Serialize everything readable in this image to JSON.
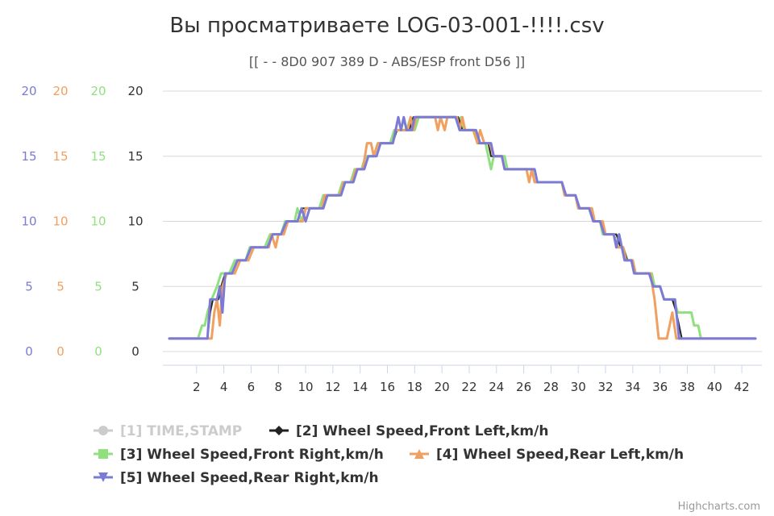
{
  "title": "Вы просматриваете LOG-03-001-!!!!.csv",
  "subtitle": "[[ - - 8D0 907 389 D - ABS/ESP front D56 ]]",
  "credits": "Highcharts.com",
  "chart_data": {
    "type": "line",
    "title": "Вы просматриваете LOG-03-001-!!!!.csv",
    "subtitle": "[[ - - 8D0 907 389 D - ABS/ESP front D56 ]]",
    "xlim": [
      0,
      43
    ],
    "ylim": [
      0,
      20
    ],
    "x_ticks": [
      2,
      4,
      6,
      8,
      10,
      12,
      14,
      16,
      18,
      20,
      22,
      24,
      26,
      28,
      30,
      32,
      34,
      36,
      38,
      40,
      42
    ],
    "y_ticks": [
      0,
      5,
      10,
      15,
      20
    ],
    "grid": "horizontal",
    "legend_position": "bottom-left",
    "y_axes": [
      {
        "color": "#7b7bd6",
        "ticks": [
          "0",
          "5",
          "10",
          "15",
          "20"
        ]
      },
      {
        "color": "#f0a060",
        "ticks": [
          "0",
          "5",
          "10",
          "15",
          "20"
        ]
      },
      {
        "color": "#90e080",
        "ticks": [
          "0",
          "5",
          "10",
          "15",
          "20"
        ]
      },
      {
        "color": "#333333",
        "ticks": [
          "0",
          "5",
          "10",
          "15",
          "20"
        ]
      }
    ],
    "series": [
      {
        "name": "[1] TIME,STAMP",
        "color": "#cccccc",
        "marker": "circle",
        "visible": false,
        "points": []
      },
      {
        "name": "[2] Wheel Speed,Front Left,km/h",
        "color": "#222222",
        "marker": "diamond",
        "visible": true,
        "points": [
          [
            0,
            1
          ],
          [
            2.8,
            1
          ],
          [
            3,
            3
          ],
          [
            3.2,
            4
          ],
          [
            3.6,
            4
          ],
          [
            3.8,
            5
          ],
          [
            4.1,
            6
          ],
          [
            4.6,
            6
          ],
          [
            5,
            7
          ],
          [
            5.6,
            7
          ],
          [
            6,
            8
          ],
          [
            7.2,
            8
          ],
          [
            7.6,
            9
          ],
          [
            8.2,
            9
          ],
          [
            8.6,
            10
          ],
          [
            9.4,
            10
          ],
          [
            9.7,
            11
          ],
          [
            10.2,
            11
          ],
          [
            11.2,
            11
          ],
          [
            11.5,
            12
          ],
          [
            12.6,
            12
          ],
          [
            12.9,
            13
          ],
          [
            13.5,
            13
          ],
          [
            13.8,
            14
          ],
          [
            14.3,
            14
          ],
          [
            14.6,
            15
          ],
          [
            15.2,
            15
          ],
          [
            15.5,
            16
          ],
          [
            16.4,
            16
          ],
          [
            16.7,
            17
          ],
          [
            17.6,
            17
          ],
          [
            17.9,
            18
          ],
          [
            21.2,
            18
          ],
          [
            21.5,
            17
          ],
          [
            22.3,
            17
          ],
          [
            22.6,
            16
          ],
          [
            23.4,
            16
          ],
          [
            23.6,
            15
          ],
          [
            24.4,
            15
          ],
          [
            24.6,
            14
          ],
          [
            26.8,
            14
          ],
          [
            27,
            13
          ],
          [
            28.8,
            13
          ],
          [
            29.1,
            12
          ],
          [
            29.8,
            12
          ],
          [
            30.1,
            11
          ],
          [
            30.8,
            11
          ],
          [
            31.1,
            10
          ],
          [
            31.6,
            10
          ],
          [
            31.9,
            9
          ],
          [
            32.8,
            9
          ],
          [
            33.1,
            8
          ],
          [
            33.3,
            8
          ],
          [
            33.6,
            7
          ],
          [
            33.9,
            7
          ],
          [
            34.1,
            6
          ],
          [
            35.2,
            6
          ],
          [
            35.5,
            5
          ],
          [
            36,
            5
          ],
          [
            36.3,
            4
          ],
          [
            36.9,
            4
          ],
          [
            37.2,
            3
          ],
          [
            37.6,
            1
          ],
          [
            43,
            1
          ]
        ]
      },
      {
        "name": "[3] Wheel Speed,Front Right,km/h",
        "color": "#90e080",
        "marker": "square",
        "visible": true,
        "points": [
          [
            0,
            1
          ],
          [
            2.1,
            1
          ],
          [
            2.4,
            2
          ],
          [
            2.6,
            2
          ],
          [
            2.8,
            3
          ],
          [
            3.1,
            4
          ],
          [
            3.5,
            5
          ],
          [
            3.8,
            6
          ],
          [
            4.4,
            6
          ],
          [
            4.8,
            7
          ],
          [
            5.6,
            7
          ],
          [
            5.9,
            8
          ],
          [
            7,
            8
          ],
          [
            7.4,
            9
          ],
          [
            8.2,
            9
          ],
          [
            8.5,
            10
          ],
          [
            9.2,
            10
          ],
          [
            9.4,
            11
          ],
          [
            9.7,
            10
          ],
          [
            10,
            11
          ],
          [
            11,
            11
          ],
          [
            11.3,
            12
          ],
          [
            12.4,
            12
          ],
          [
            12.7,
            13
          ],
          [
            13.3,
            13
          ],
          [
            13.6,
            14
          ],
          [
            14.1,
            14
          ],
          [
            14.4,
            15
          ],
          [
            15,
            15
          ],
          [
            15.3,
            16
          ],
          [
            16.2,
            16
          ],
          [
            16.5,
            17
          ],
          [
            17.4,
            17
          ],
          [
            17.7,
            18
          ],
          [
            18,
            17
          ],
          [
            18.3,
            18
          ],
          [
            21,
            18
          ],
          [
            21.2,
            17.5
          ],
          [
            21.4,
            18
          ],
          [
            21.6,
            17
          ],
          [
            22.4,
            17
          ],
          [
            22.7,
            16
          ],
          [
            23.2,
            16
          ],
          [
            23.6,
            14
          ],
          [
            23.8,
            15
          ],
          [
            24.6,
            15
          ],
          [
            24.8,
            14
          ],
          [
            26.6,
            14
          ],
          [
            26.8,
            13
          ],
          [
            28.8,
            13
          ],
          [
            29,
            12
          ],
          [
            29.8,
            12
          ],
          [
            30,
            11
          ],
          [
            31,
            11
          ],
          [
            31.2,
            10
          ],
          [
            31.6,
            10
          ],
          [
            31.8,
            9
          ],
          [
            32.6,
            9
          ],
          [
            32.9,
            8
          ],
          [
            33.3,
            8
          ],
          [
            33.6,
            7
          ],
          [
            34,
            7
          ],
          [
            34.2,
            6
          ],
          [
            35.4,
            6
          ],
          [
            35.6,
            5
          ],
          [
            36,
            5
          ],
          [
            36.3,
            4
          ],
          [
            37,
            4
          ],
          [
            37.3,
            3
          ],
          [
            38.3,
            3
          ],
          [
            38.5,
            2
          ],
          [
            38.8,
            2
          ],
          [
            39,
            1
          ],
          [
            43,
            1
          ]
        ]
      },
      {
        "name": "[4] Wheel Speed,Rear Left,km/h",
        "color": "#f0a060",
        "marker": "triangle",
        "visible": true,
        "points": [
          [
            0,
            1
          ],
          [
            2.9,
            1
          ],
          [
            3.1,
            1
          ],
          [
            3.3,
            3
          ],
          [
            3.5,
            4
          ],
          [
            3.7,
            2
          ],
          [
            3.9,
            5
          ],
          [
            4.2,
            6
          ],
          [
            4.8,
            6
          ],
          [
            5.2,
            7
          ],
          [
            5.8,
            7
          ],
          [
            6.2,
            8
          ],
          [
            7.3,
            8
          ],
          [
            7.5,
            9
          ],
          [
            7.8,
            8
          ],
          [
            8,
            9
          ],
          [
            8.4,
            9
          ],
          [
            8.7,
            10
          ],
          [
            9.8,
            10
          ],
          [
            10,
            11
          ],
          [
            11.2,
            11
          ],
          [
            11.4,
            12
          ],
          [
            12.5,
            12
          ],
          [
            12.8,
            13
          ],
          [
            13.4,
            13
          ],
          [
            13.7,
            14
          ],
          [
            14.2,
            14
          ],
          [
            14.5,
            16
          ],
          [
            14.8,
            16
          ],
          [
            15,
            15
          ],
          [
            15.3,
            16
          ],
          [
            16.4,
            16
          ],
          [
            16.6,
            17
          ],
          [
            17.5,
            17
          ],
          [
            17.7,
            18
          ],
          [
            17.9,
            17
          ],
          [
            18.1,
            18
          ],
          [
            19.5,
            18
          ],
          [
            19.7,
            17
          ],
          [
            19.9,
            18
          ],
          [
            20.2,
            17
          ],
          [
            20.4,
            18
          ],
          [
            21.1,
            18
          ],
          [
            21.3,
            17
          ],
          [
            21.5,
            18
          ],
          [
            21.7,
            17
          ],
          [
            22.3,
            17
          ],
          [
            22.6,
            16
          ],
          [
            22.8,
            17
          ],
          [
            23.1,
            16
          ],
          [
            23.5,
            16
          ],
          [
            23.8,
            15
          ],
          [
            24.4,
            15
          ],
          [
            24.6,
            14
          ],
          [
            26.2,
            14
          ],
          [
            26.4,
            13
          ],
          [
            26.6,
            14
          ],
          [
            26.8,
            13
          ],
          [
            28.8,
            13
          ],
          [
            29,
            12
          ],
          [
            29.8,
            12
          ],
          [
            30,
            11
          ],
          [
            31,
            11
          ],
          [
            31.2,
            10
          ],
          [
            31.8,
            10
          ],
          [
            32,
            9
          ],
          [
            32.6,
            9
          ],
          [
            32.8,
            8
          ],
          [
            33.3,
            8
          ],
          [
            33.5,
            7
          ],
          [
            34,
            7
          ],
          [
            34.2,
            6
          ],
          [
            35.3,
            6
          ],
          [
            35.6,
            4
          ],
          [
            35.9,
            1
          ],
          [
            36.5,
            1
          ],
          [
            36.9,
            3
          ],
          [
            37.2,
            1
          ],
          [
            43,
            1
          ]
        ]
      },
      {
        "name": "[5] Wheel Speed,Rear Right,km/h",
        "color": "#7b7bd6",
        "marker": "triangle-down",
        "visible": true,
        "points": [
          [
            0,
            1
          ],
          [
            2.8,
            1
          ],
          [
            3,
            4
          ],
          [
            3.5,
            4
          ],
          [
            3.7,
            5
          ],
          [
            3.9,
            3
          ],
          [
            4.1,
            6
          ],
          [
            4.6,
            6
          ],
          [
            5,
            7
          ],
          [
            5.6,
            7
          ],
          [
            6,
            8
          ],
          [
            7.2,
            8
          ],
          [
            7.6,
            9
          ],
          [
            8.2,
            9
          ],
          [
            8.6,
            10
          ],
          [
            9.4,
            10
          ],
          [
            9.7,
            11
          ],
          [
            10,
            10
          ],
          [
            10.3,
            11
          ],
          [
            11.3,
            11
          ],
          [
            11.6,
            12
          ],
          [
            12.6,
            12
          ],
          [
            12.9,
            13
          ],
          [
            13.5,
            13
          ],
          [
            13.8,
            14
          ],
          [
            14.3,
            14
          ],
          [
            14.6,
            15
          ],
          [
            15.2,
            15
          ],
          [
            15.5,
            16
          ],
          [
            16.4,
            16
          ],
          [
            16.6,
            17
          ],
          [
            16.8,
            18
          ],
          [
            17,
            17
          ],
          [
            17.2,
            18
          ],
          [
            17.4,
            17
          ],
          [
            17.8,
            17
          ],
          [
            18,
            18
          ],
          [
            21,
            18
          ],
          [
            21.3,
            17
          ],
          [
            22.5,
            17
          ],
          [
            22.8,
            16
          ],
          [
            23.6,
            16
          ],
          [
            23.8,
            15
          ],
          [
            24.4,
            15
          ],
          [
            24.6,
            14
          ],
          [
            26.8,
            14
          ],
          [
            27,
            13
          ],
          [
            28.8,
            13
          ],
          [
            29.1,
            12
          ],
          [
            29.8,
            12
          ],
          [
            30.1,
            11
          ],
          [
            30.8,
            11
          ],
          [
            31.1,
            10
          ],
          [
            31.6,
            10
          ],
          [
            31.9,
            9
          ],
          [
            32.6,
            9
          ],
          [
            32.8,
            8
          ],
          [
            33,
            9
          ],
          [
            33.2,
            8
          ],
          [
            33.4,
            7
          ],
          [
            33.9,
            7
          ],
          [
            34.1,
            6
          ],
          [
            35.2,
            6
          ],
          [
            35.5,
            5
          ],
          [
            36,
            5
          ],
          [
            36.3,
            4
          ],
          [
            37.1,
            4
          ],
          [
            37.4,
            1
          ],
          [
            43,
            1
          ]
        ]
      }
    ]
  }
}
